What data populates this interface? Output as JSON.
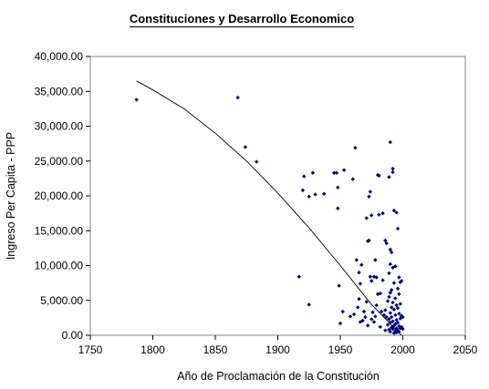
{
  "chart_data": {
    "type": "scatter",
    "title": "Constituciones y Desarrollo Economico",
    "xlabel": "Año de Proclamación de la Constitución",
    "ylabel": "Ingreso Per Capita - PPP",
    "xlim": [
      1750,
      2050
    ],
    "ylim": [
      0,
      40000
    ],
    "x_ticks": [
      1750,
      1800,
      1850,
      1900,
      1950,
      2000,
      2050
    ],
    "x_tick_labels": [
      "1750",
      "1800",
      "1850",
      "1900",
      "1950",
      "2000",
      "2050"
    ],
    "y_ticks": [
      0,
      5000,
      10000,
      15000,
      20000,
      25000,
      30000,
      35000,
      40000
    ],
    "y_tick_labels": [
      "0.00",
      "5,000.00",
      "10,000.00",
      "15,000.00",
      "20,000.00",
      "25,000.00",
      "30,000.00",
      "35,000.00",
      "40,000.00"
    ],
    "grid": false,
    "legend": "none",
    "marker_color": "#000080",
    "trendline_color": "#000000",
    "points": [
      [
        1787,
        33800
      ],
      [
        1868,
        34100
      ],
      [
        1874,
        27000
      ],
      [
        1883,
        24900
      ],
      [
        1917,
        8400
      ],
      [
        1920,
        20800
      ],
      [
        1921,
        22800
      ],
      [
        1925,
        19900
      ],
      [
        1925,
        4400
      ],
      [
        1928,
        23300
      ],
      [
        1930,
        20200
      ],
      [
        1937,
        20300
      ],
      [
        1945,
        23300
      ],
      [
        1947,
        23300
      ],
      [
        1948,
        21200
      ],
      [
        1948,
        18200
      ],
      [
        1949,
        7100
      ],
      [
        1950,
        1700
      ],
      [
        1952,
        3400
      ],
      [
        1953,
        23700
      ],
      [
        1958,
        2700
      ],
      [
        1960,
        22400
      ],
      [
        1961,
        3000
      ],
      [
        1962,
        26900
      ],
      [
        1963,
        10800
      ],
      [
        1964,
        4000
      ],
      [
        1965,
        9000
      ],
      [
        1965,
        5200
      ],
      [
        1966,
        7400
      ],
      [
        1966,
        1900
      ],
      [
        1967,
        10100
      ],
      [
        1968,
        2100
      ],
      [
        1969,
        3400
      ],
      [
        1970,
        2600
      ],
      [
        1971,
        16800
      ],
      [
        1971,
        4800
      ],
      [
        1972,
        13500
      ],
      [
        1972,
        1400
      ],
      [
        1973,
        19900
      ],
      [
        1973,
        13600
      ],
      [
        1974,
        20600
      ],
      [
        1974,
        8400
      ],
      [
        1975,
        17200
      ],
      [
        1975,
        7800
      ],
      [
        1975,
        2300
      ],
      [
        1976,
        3300
      ],
      [
        1977,
        8400
      ],
      [
        1977,
        1900
      ],
      [
        1978,
        10800
      ],
      [
        1978,
        2700
      ],
      [
        1979,
        8300
      ],
      [
        1979,
        4300
      ],
      [
        1980,
        23000
      ],
      [
        1980,
        5900
      ],
      [
        1981,
        17300
      ],
      [
        1981,
        22900
      ],
      [
        1982,
        6000
      ],
      [
        1982,
        1200
      ],
      [
        1983,
        3400
      ],
      [
        1984,
        17500
      ],
      [
        1984,
        7900
      ],
      [
        1985,
        2900
      ],
      [
        1986,
        13600
      ],
      [
        1986,
        3600
      ],
      [
        1986,
        700
      ],
      [
        1987,
        13200
      ],
      [
        1987,
        2600
      ],
      [
        1988,
        4900
      ],
      [
        1988,
        1500
      ],
      [
        1989,
        22700
      ],
      [
        1989,
        8900
      ],
      [
        1989,
        5500
      ],
      [
        1989,
        2300
      ],
      [
        1989,
        800
      ],
      [
        1990,
        27700
      ],
      [
        1990,
        12300
      ],
      [
        1990,
        10200
      ],
      [
        1990,
        6100
      ],
      [
        1990,
        3200
      ],
      [
        1990,
        1800
      ],
      [
        1990,
        500
      ],
      [
        1991,
        11900
      ],
      [
        1991,
        6500
      ],
      [
        1991,
        4000
      ],
      [
        1991,
        2600
      ],
      [
        1991,
        1100
      ],
      [
        1992,
        23900
      ],
      [
        1992,
        23400
      ],
      [
        1992,
        9700
      ],
      [
        1992,
        4700
      ],
      [
        1992,
        2000
      ],
      [
        1992,
        900
      ],
      [
        1993,
        17900
      ],
      [
        1993,
        7500
      ],
      [
        1993,
        3700
      ],
      [
        1993,
        1400
      ],
      [
        1993,
        300
      ],
      [
        1994,
        9900
      ],
      [
        1994,
        5300
      ],
      [
        1994,
        2900
      ],
      [
        1994,
        1600
      ],
      [
        1994,
        600
      ],
      [
        1995,
        17600
      ],
      [
        1995,
        4300
      ],
      [
        1995,
        2200
      ],
      [
        1995,
        1000
      ],
      [
        1995,
        400
      ],
      [
        1996,
        15300
      ],
      [
        1996,
        6700
      ],
      [
        1996,
        3900
      ],
      [
        1996,
        1800
      ],
      [
        1996,
        700
      ],
      [
        1997,
        8300
      ],
      [
        1997,
        5900
      ],
      [
        1997,
        3100
      ],
      [
        1997,
        1300
      ],
      [
        1997,
        500
      ],
      [
        1998,
        7600
      ],
      [
        1998,
        4500
      ],
      [
        1998,
        2400
      ],
      [
        1998,
        1000
      ],
      [
        1999,
        7800
      ],
      [
        1999,
        2800
      ],
      [
        1999,
        1200
      ],
      [
        2000,
        2600
      ],
      [
        2000,
        900
      ]
    ],
    "trendline": [
      [
        1787,
        36500
      ],
      [
        1800,
        35200
      ],
      [
        1825,
        32500
      ],
      [
        1850,
        29000
      ],
      [
        1875,
        25000
      ],
      [
        1900,
        20400
      ],
      [
        1925,
        15400
      ],
      [
        1950,
        10000
      ],
      [
        1975,
        4400
      ],
      [
        1999,
        0
      ]
    ]
  }
}
